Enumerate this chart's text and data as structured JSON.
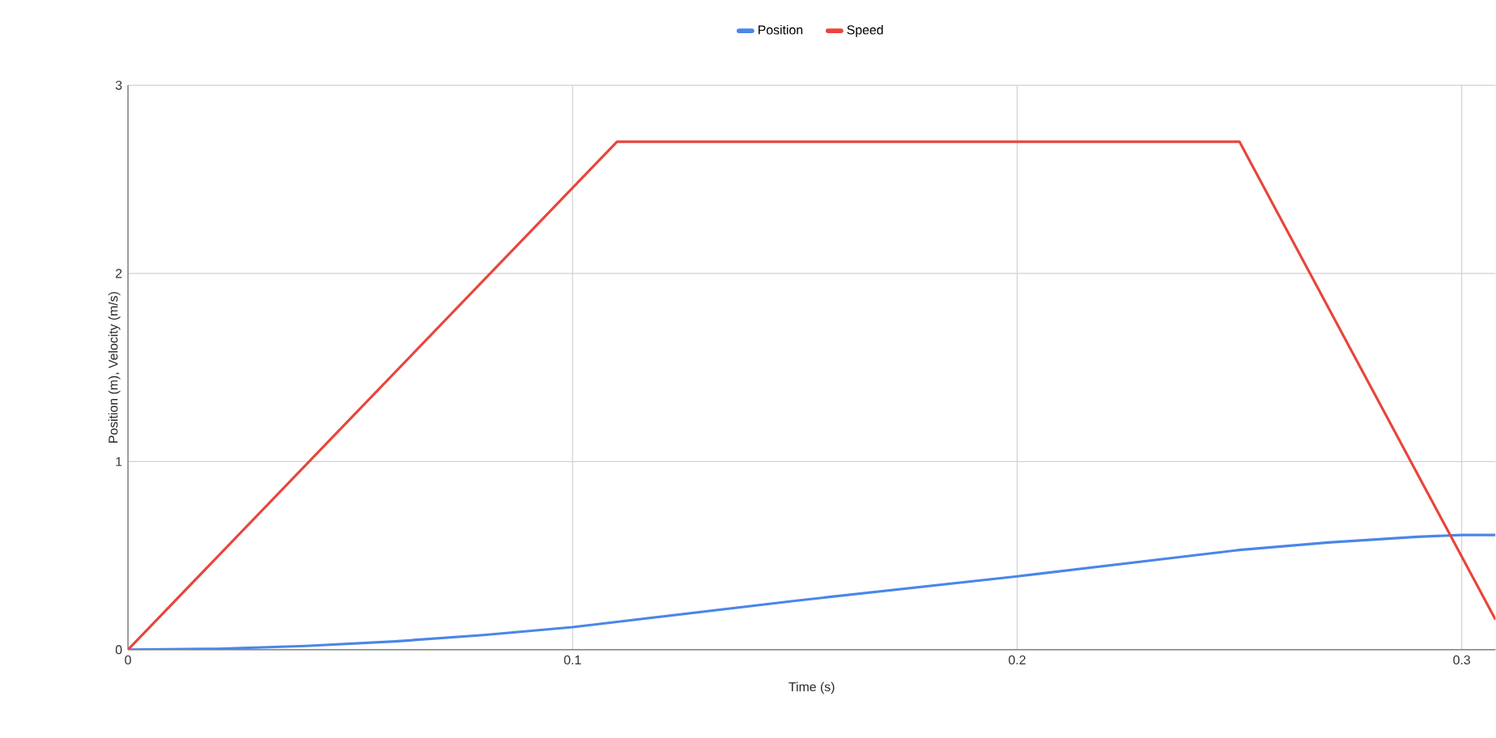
{
  "chart_data": {
    "type": "line",
    "xlabel": "Time (s)",
    "ylabel": "Position (m), Velocity (m/s)",
    "xlim": [
      0,
      0.3076
    ],
    "ylim": [
      0,
      3
    ],
    "xticks": [
      0,
      0.1,
      0.2,
      0.3
    ],
    "yticks": [
      0,
      1,
      2,
      3
    ],
    "grid": true,
    "legend": "top",
    "marker": "none",
    "line_style": "solid",
    "series": [
      {
        "name": "Position",
        "color": "#4a86e8",
        "x": [
          0,
          0.02,
          0.04,
          0.06,
          0.08,
          0.1,
          0.11,
          0.15,
          0.2,
          0.25,
          0.27,
          0.29,
          0.3,
          0.3076
        ],
        "values": [
          0,
          0.005,
          0.02,
          0.044,
          0.078,
          0.12,
          0.148,
          0.26,
          0.39,
          0.53,
          0.57,
          0.6,
          0.61,
          0.61
        ]
      },
      {
        "name": "Speed",
        "color": "#e8453c",
        "x": [
          0,
          0.11,
          0.25,
          0.3076
        ],
        "values": [
          0,
          2.7,
          2.7,
          0.16
        ]
      }
    ]
  }
}
